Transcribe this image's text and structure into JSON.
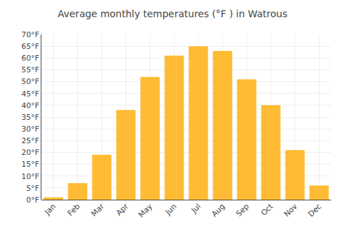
{
  "chart_data": {
    "type": "bar",
    "title": "Average monthly temperatures (°F ) in Watrous",
    "categories": [
      "Jan",
      "Feb",
      "Mar",
      "Apr",
      "May",
      "Jun",
      "Jul",
      "Aug",
      "Sep",
      "Oct",
      "Nov",
      "Dec"
    ],
    "values": [
      1,
      7,
      19,
      38,
      52,
      61,
      65,
      63,
      51,
      40,
      21,
      6
    ],
    "color": "#FFBB33",
    "ylim": [
      0,
      70
    ],
    "yticks": [
      {
        "value": 0,
        "label": "0°F"
      },
      {
        "value": 5,
        "label": "5°F"
      },
      {
        "value": 10,
        "label": "10°F"
      },
      {
        "value": 15,
        "label": "15°F"
      },
      {
        "value": 20,
        "label": "20°F"
      },
      {
        "value": 25,
        "label": "25°F"
      },
      {
        "value": 30,
        "label": "30°F"
      },
      {
        "value": 35,
        "label": "35°F"
      },
      {
        "value": 40,
        "label": "40°F"
      },
      {
        "value": 45,
        "label": "45°F"
      },
      {
        "value": 50,
        "label": "50°F"
      },
      {
        "value": 55,
        "label": "55°F"
      },
      {
        "value": 60,
        "label": "60°F"
      },
      {
        "value": 65,
        "label": "65°F"
      },
      {
        "value": 70,
        "label": "70°F"
      }
    ],
    "grid": true
  }
}
